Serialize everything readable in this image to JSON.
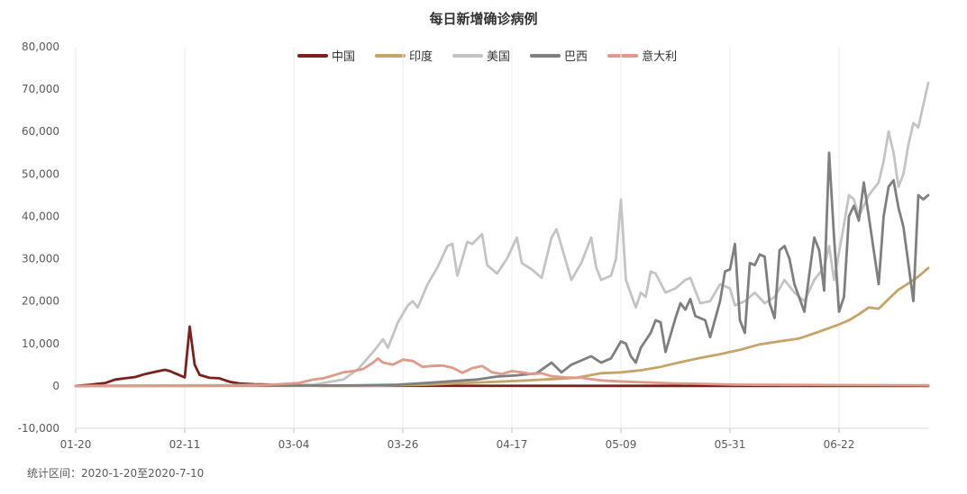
{
  "chart_data": {
    "type": "line",
    "title": "每日新增确诊病例",
    "xlabel": "",
    "ylabel": "",
    "ylim": [
      -10000,
      80000
    ],
    "yticks": [
      -10000,
      0,
      10000,
      20000,
      30000,
      40000,
      50000,
      60000,
      70000,
      80000
    ],
    "ytick_labels": [
      "-10,000",
      "0",
      "10,000",
      "20,000",
      "30,000",
      "40,000",
      "50,000",
      "60,000",
      "70,000",
      "80,000"
    ],
    "x_range": [
      "01-20",
      "07-10"
    ],
    "xtick_labels": [
      "01-20",
      "02-11",
      "03-04",
      "03-26",
      "04-17",
      "05-09",
      "05-31",
      "06-22"
    ],
    "legend_position": "top-center",
    "grid": "vertical",
    "series": [
      {
        "name": "中国",
        "color": "#7b1f1f",
        "points": [
          [
            "01-20",
            0
          ],
          [
            "01-23",
            300
          ],
          [
            "01-26",
            700
          ],
          [
            "01-28",
            1500
          ],
          [
            "01-30",
            1800
          ],
          [
            "02-01",
            2100
          ],
          [
            "02-03",
            2800
          ],
          [
            "02-05",
            3300
          ],
          [
            "02-07",
            3800
          ],
          [
            "02-08",
            3500
          ],
          [
            "02-09",
            3000
          ],
          [
            "02-10",
            2500
          ],
          [
            "02-11",
            2000
          ],
          [
            "02-12",
            14000
          ],
          [
            "02-13",
            5000
          ],
          [
            "02-14",
            2600
          ],
          [
            "02-16",
            1900
          ],
          [
            "02-18",
            1800
          ],
          [
            "02-20",
            1000
          ],
          [
            "02-22",
            600
          ],
          [
            "02-25",
            400
          ],
          [
            "03-01",
            300
          ],
          [
            "03-05",
            100
          ],
          [
            "03-10",
            50
          ],
          [
            "04-01",
            50
          ],
          [
            "05-01",
            20
          ],
          [
            "06-01",
            10
          ],
          [
            "07-10",
            10
          ]
        ]
      },
      {
        "name": "印度",
        "color": "#c5a46a",
        "points": [
          [
            "01-20",
            0
          ],
          [
            "03-20",
            50
          ],
          [
            "03-31",
            300
          ],
          [
            "04-10",
            800
          ],
          [
            "04-20",
            1300
          ],
          [
            "04-30",
            1900
          ],
          [
            "05-05",
            3000
          ],
          [
            "05-09",
            3200
          ],
          [
            "05-13",
            3700
          ],
          [
            "05-17",
            4500
          ],
          [
            "05-21",
            5600
          ],
          [
            "05-25",
            6600
          ],
          [
            "05-29",
            7500
          ],
          [
            "06-02",
            8500
          ],
          [
            "06-06",
            9800
          ],
          [
            "06-10",
            10500
          ],
          [
            "06-14",
            11200
          ],
          [
            "06-18",
            12800
          ],
          [
            "06-22",
            14500
          ],
          [
            "06-24",
            15500
          ],
          [
            "06-26",
            16900
          ],
          [
            "06-28",
            18500
          ],
          [
            "06-30",
            18200
          ],
          [
            "07-02",
            20500
          ],
          [
            "07-04",
            22700
          ],
          [
            "07-06",
            24200
          ],
          [
            "07-08",
            25800
          ],
          [
            "07-10",
            27800
          ]
        ]
      },
      {
        "name": "美国",
        "color": "#c4c4c4",
        "points": [
          [
            "01-20",
            0
          ],
          [
            "03-08",
            300
          ],
          [
            "03-14",
            1500
          ],
          [
            "03-17",
            4000
          ],
          [
            "03-20",
            8000
          ],
          [
            "03-22",
            11000
          ],
          [
            "03-23",
            9000
          ],
          [
            "03-25",
            15000
          ],
          [
            "03-27",
            19000
          ],
          [
            "03-28",
            20000
          ],
          [
            "03-29",
            18500
          ],
          [
            "03-31",
            24000
          ],
          [
            "04-02",
            28000
          ],
          [
            "04-04",
            33000
          ],
          [
            "04-05",
            33500
          ],
          [
            "04-06",
            26000
          ],
          [
            "04-07",
            30000
          ],
          [
            "04-08",
            34000
          ],
          [
            "04-09",
            33500
          ],
          [
            "04-11",
            35800
          ],
          [
            "04-12",
            28500
          ],
          [
            "04-14",
            26500
          ],
          [
            "04-16",
            30000
          ],
          [
            "04-18",
            35000
          ],
          [
            "04-19",
            29000
          ],
          [
            "04-21",
            27500
          ],
          [
            "04-23",
            25500
          ],
          [
            "04-25",
            35000
          ],
          [
            "04-26",
            37000
          ],
          [
            "04-29",
            25000
          ],
          [
            "05-01",
            29000
          ],
          [
            "05-03",
            35000
          ],
          [
            "05-04",
            28000
          ],
          [
            "05-05",
            25000
          ],
          [
            "05-07",
            26000
          ],
          [
            "05-08",
            30000
          ],
          [
            "05-09",
            44000
          ],
          [
            "05-10",
            25000
          ],
          [
            "05-12",
            18500
          ],
          [
            "05-13",
            22000
          ],
          [
            "05-14",
            21000
          ],
          [
            "05-15",
            27000
          ],
          [
            "05-16",
            26500
          ],
          [
            "05-18",
            22000
          ],
          [
            "05-20",
            23000
          ],
          [
            "05-22",
            25000
          ],
          [
            "05-23",
            25500
          ],
          [
            "05-25",
            19500
          ],
          [
            "05-27",
            20000
          ],
          [
            "05-29",
            24000
          ],
          [
            "05-31",
            23000
          ],
          [
            "06-01",
            19000
          ],
          [
            "06-03",
            20000
          ],
          [
            "06-05",
            22000
          ],
          [
            "06-07",
            19500
          ],
          [
            "06-09",
            21000
          ],
          [
            "06-11",
            25000
          ],
          [
            "06-13",
            22000
          ],
          [
            "06-15",
            20000
          ],
          [
            "06-17",
            25000
          ],
          [
            "06-19",
            28000
          ],
          [
            "06-20",
            33000
          ],
          [
            "06-21",
            25000
          ],
          [
            "06-23",
            38000
          ],
          [
            "06-24",
            45000
          ],
          [
            "06-25",
            44000
          ],
          [
            "06-26",
            40000
          ],
          [
            "06-28",
            45000
          ],
          [
            "06-30",
            48000
          ],
          [
            "07-01",
            53000
          ],
          [
            "07-02",
            60000
          ],
          [
            "07-03",
            55000
          ],
          [
            "07-04",
            47000
          ],
          [
            "07-05",
            50000
          ],
          [
            "07-06",
            57000
          ],
          [
            "07-07",
            62000
          ],
          [
            "07-08",
            61000
          ],
          [
            "07-10",
            71500
          ]
        ]
      },
      {
        "name": "巴西",
        "color": "#7f7f7f",
        "points": [
          [
            "01-20",
            0
          ],
          [
            "03-15",
            100
          ],
          [
            "03-25",
            300
          ],
          [
            "04-01",
            800
          ],
          [
            "04-06",
            1200
          ],
          [
            "04-10",
            1500
          ],
          [
            "04-14",
            2200
          ],
          [
            "04-18",
            2500
          ],
          [
            "04-22",
            3000
          ],
          [
            "04-25",
            5500
          ],
          [
            "04-27",
            3200
          ],
          [
            "04-29",
            5000
          ],
          [
            "05-01",
            6000
          ],
          [
            "05-03",
            7000
          ],
          [
            "05-05",
            5500
          ],
          [
            "05-07",
            6500
          ],
          [
            "05-09",
            10500
          ],
          [
            "05-10",
            10000
          ],
          [
            "05-11",
            7000
          ],
          [
            "05-12",
            5500
          ],
          [
            "05-13",
            9000
          ],
          [
            "05-15",
            12500
          ],
          [
            "05-16",
            15500
          ],
          [
            "05-17",
            15000
          ],
          [
            "05-18",
            8000
          ],
          [
            "05-20",
            16000
          ],
          [
            "05-21",
            19500
          ],
          [
            "05-22",
            18000
          ],
          [
            "05-23",
            20500
          ],
          [
            "05-24",
            16500
          ],
          [
            "05-26",
            15500
          ],
          [
            "05-27",
            11500
          ],
          [
            "05-29",
            20000
          ],
          [
            "05-30",
            27000
          ],
          [
            "05-31",
            27500
          ],
          [
            "06-01",
            33500
          ],
          [
            "06-02",
            15500
          ],
          [
            "06-03",
            12500
          ],
          [
            "06-04",
            29000
          ],
          [
            "06-05",
            28500
          ],
          [
            "06-06",
            31000
          ],
          [
            "06-07",
            30500
          ],
          [
            "06-08",
            19500
          ],
          [
            "06-09",
            16000
          ],
          [
            "06-10",
            32000
          ],
          [
            "06-11",
            33000
          ],
          [
            "06-12",
            30000
          ],
          [
            "06-13",
            24000
          ],
          [
            "06-15",
            17500
          ],
          [
            "06-17",
            35000
          ],
          [
            "06-18",
            32000
          ],
          [
            "06-19",
            22500
          ],
          [
            "06-20",
            55000
          ],
          [
            "06-21",
            35000
          ],
          [
            "06-22",
            17500
          ],
          [
            "06-23",
            21000
          ],
          [
            "06-24",
            40000
          ],
          [
            "06-25",
            42500
          ],
          [
            "06-26",
            39000
          ],
          [
            "06-27",
            48000
          ],
          [
            "06-28",
            40000
          ],
          [
            "06-29",
            32000
          ],
          [
            "06-30",
            24000
          ],
          [
            "07-01",
            40000
          ],
          [
            "07-02",
            47000
          ],
          [
            "07-03",
            48500
          ],
          [
            "07-04",
            42000
          ],
          [
            "07-05",
            37500
          ],
          [
            "07-07",
            20000
          ],
          [
            "07-08",
            45000
          ],
          [
            "07-09",
            44000
          ],
          [
            "07-10",
            45000
          ]
        ]
      },
      {
        "name": "意大利",
        "color": "#e09a8a",
        "points": [
          [
            "01-20",
            0
          ],
          [
            "02-25",
            100
          ],
          [
            "03-01",
            400
          ],
          [
            "03-05",
            700
          ],
          [
            "03-08",
            1500
          ],
          [
            "03-10",
            1800
          ],
          [
            "03-12",
            2500
          ],
          [
            "03-14",
            3200
          ],
          [
            "03-16",
            3500
          ],
          [
            "03-18",
            4000
          ],
          [
            "03-20",
            5500
          ],
          [
            "03-21",
            6500
          ],
          [
            "03-22",
            5500
          ],
          [
            "03-24",
            5000
          ],
          [
            "03-26",
            6200
          ],
          [
            "03-28",
            5900
          ],
          [
            "03-30",
            4500
          ],
          [
            "04-01",
            4700
          ],
          [
            "04-03",
            4800
          ],
          [
            "04-05",
            4300
          ],
          [
            "04-07",
            3100
          ],
          [
            "04-09",
            4200
          ],
          [
            "04-11",
            4700
          ],
          [
            "04-13",
            3200
          ],
          [
            "04-15",
            2800
          ],
          [
            "04-17",
            3500
          ],
          [
            "04-19",
            3200
          ],
          [
            "04-21",
            2800
          ],
          [
            "04-23",
            3000
          ],
          [
            "04-25",
            2300
          ],
          [
            "04-28",
            2000
          ],
          [
            "05-01",
            1900
          ],
          [
            "05-05",
            1300
          ],
          [
            "05-10",
            1000
          ],
          [
            "05-15",
            800
          ],
          [
            "05-20",
            600
          ],
          [
            "05-25",
            500
          ],
          [
            "06-01",
            300
          ],
          [
            "06-10",
            250
          ],
          [
            "06-20",
            200
          ],
          [
            "07-01",
            180
          ],
          [
            "07-10",
            150
          ]
        ]
      }
    ]
  },
  "footnote": "统计区间：2020-1-20至2020-7-10"
}
